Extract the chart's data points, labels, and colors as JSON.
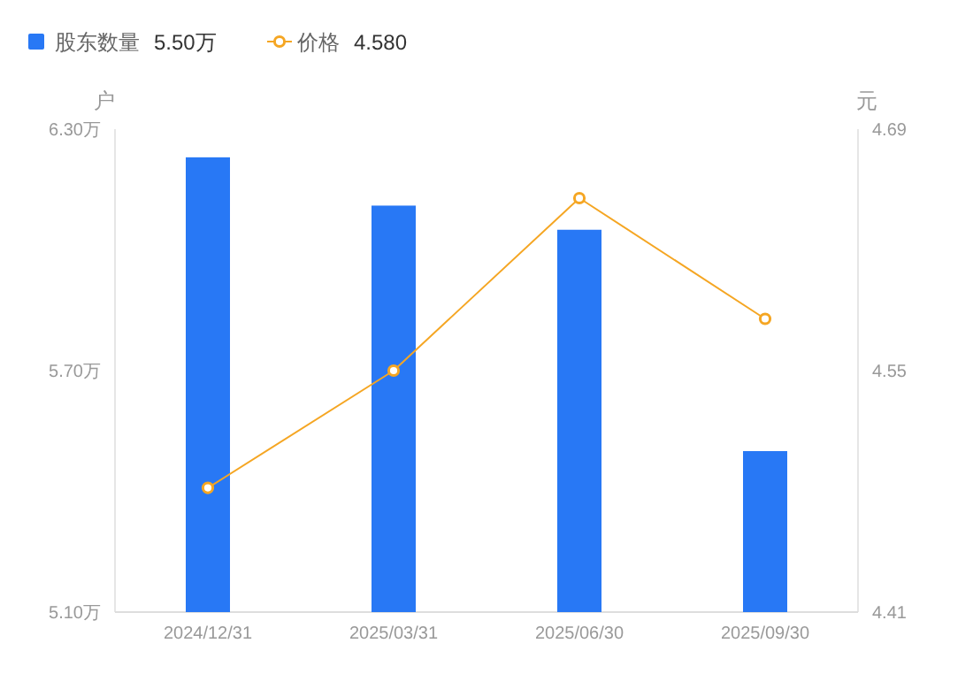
{
  "chart_data": {
    "type": "bar",
    "categories": [
      "2024/12/31",
      "2025/03/31",
      "2025/06/30",
      "2025/09/30"
    ],
    "series": [
      {
        "name": "股东数量",
        "color": "#2878f5",
        "values": [
          6.23,
          6.11,
          6.05,
          5.5
        ]
      },
      {
        "name": "价格",
        "type": "line",
        "axis": "y2",
        "color": "#f5a623",
        "marker": "circle",
        "values": [
          4.482,
          4.55,
          4.65,
          4.58
        ]
      }
    ],
    "ylabel": "户",
    "y2label": "元",
    "ylim": [
      5.1,
      6.3
    ],
    "yticks": [
      {
        "value": 5.1,
        "label": "5.10万"
      },
      {
        "value": 5.7,
        "label": "5.70万"
      },
      {
        "value": 6.3,
        "label": "6.30万"
      }
    ],
    "y2lim": [
      4.41,
      4.69
    ],
    "y2ticks": [
      4.41,
      4.55,
      4.69
    ],
    "annotations": [
      "5.50万",
      "4.580"
    ],
    "legend": "top left",
    "grid": false
  }
}
